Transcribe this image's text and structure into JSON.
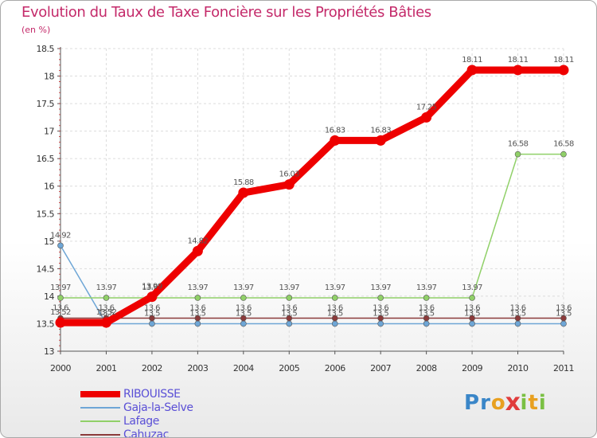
{
  "title": "Evolution du Taux de Taxe Foncière sur les Propriétés Bâties",
  "unit_label": "(en %)",
  "logo": {
    "letters": [
      "P",
      "r",
      "o",
      "x",
      "i",
      "t",
      "i"
    ],
    "colors": [
      "#3a86c8",
      "#3a86c8",
      "#e8a020",
      "#e03c3c",
      "#7ac043",
      "#e8a020",
      "#7ac043"
    ]
  },
  "chart_data": {
    "type": "line",
    "title": "Evolution du Taux de Taxe Foncière sur les Propriétés Bâties",
    "ylabel": "(en %)",
    "xlabel": "",
    "x": [
      "2000",
      "2001",
      "2002",
      "2003",
      "2004",
      "2005",
      "2006",
      "2007",
      "2008",
      "2009",
      "2010",
      "2011"
    ],
    "ylim": [
      13,
      18.5
    ],
    "yticks": [
      "13",
      "13.5",
      "14",
      "14.5",
      "15",
      "15.5",
      "16",
      "16.5",
      "17",
      "17.5",
      "18",
      "18.5"
    ],
    "grid": true,
    "legend": "bottom-left",
    "series": [
      {
        "name": "RIBOUISSE",
        "color": "#ee0000",
        "width": "thick",
        "values": [
          13.52,
          13.52,
          13.99,
          14.82,
          15.88,
          16.03,
          16.83,
          16.83,
          17.25,
          18.11,
          18.11,
          18.11
        ],
        "labels": [
          "13.52",
          "13.52",
          "13.99",
          "14.82",
          "15.88",
          "16.03",
          "16.83",
          "16.83",
          "17.25",
          "18.11",
          "18.11",
          "18.11"
        ]
      },
      {
        "name": "Gaja-la-Selve",
        "color": "#6ea6d6",
        "width": "thin",
        "values": [
          14.92,
          13.5,
          13.5,
          13.5,
          13.5,
          13.5,
          13.5,
          13.5,
          13.5,
          13.5,
          13.5,
          13.5
        ],
        "labels": [
          "14.92",
          "13.5",
          "13.5",
          "13.5",
          "13.5",
          "13.5",
          "13.5",
          "13.5",
          "13.5",
          "13.5",
          "13.5",
          "13.5"
        ]
      },
      {
        "name": "Lafage",
        "color": "#90d068",
        "width": "thin",
        "values": [
          13.97,
          13.97,
          13.97,
          13.97,
          13.97,
          13.97,
          13.97,
          13.97,
          13.97,
          13.97,
          16.58,
          16.58
        ],
        "labels": [
          "13.97",
          "13.97",
          "13.97",
          "13.97",
          "13.97",
          "13.97",
          "13.97",
          "13.97",
          "13.97",
          "13.97",
          "16.58",
          "16.58"
        ]
      },
      {
        "name": "Cahuzac",
        "color": "#8b3a3a",
        "width": "thin",
        "values": [
          13.6,
          13.6,
          13.6,
          13.6,
          13.6,
          13.6,
          13.6,
          13.6,
          13.6,
          13.6,
          13.6,
          13.6
        ],
        "labels": [
          "13.6",
          "13.6",
          "13.6",
          "13.6",
          "13.6",
          "13.6",
          "13.6",
          "13.6",
          "13.6",
          "13.6",
          "13.6",
          "13.6"
        ]
      }
    ]
  }
}
